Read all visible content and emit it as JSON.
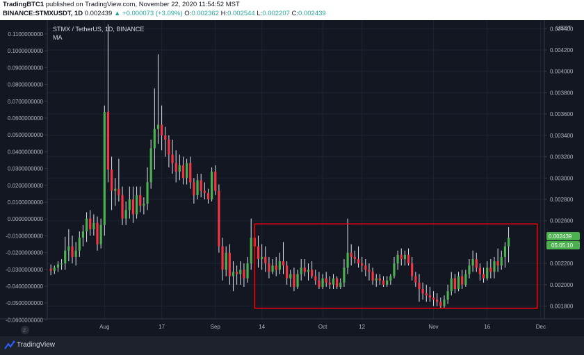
{
  "header": {
    "author": "TradingBTC1",
    "published_text": " published on TradingView.com, November 22, 2020 11:54:52 MST",
    "symbol": "BINANCE:STMXUSDT, 1D",
    "last_price": "0.002439",
    "change": "+0.000073 (+3.09%)",
    "o_label": "O:",
    "o_value": "0.002362",
    "h_label": "H:",
    "h_value": "0.002544",
    "l_label": "L:",
    "l_value": "0.002207",
    "c_label": "C:",
    "c_value": "0.002439",
    "up_arrow": "▲"
  },
  "legend": {
    "title": "STMX / TetherUS, 1D, BINANCE",
    "indicator": "MA"
  },
  "price_badge": {
    "price": "0.002439",
    "countdown": "05:05:10"
  },
  "footer": {
    "brand": "TradingView",
    "scale_mark": "Z"
  },
  "colors": {
    "background": "#131722",
    "up_candle": "#4caf50",
    "down_candle": "#f23645",
    "box": "#ff0000",
    "grid": "#1e2433",
    "axis_text": "#b2b5be"
  },
  "chart_data": {
    "type": "candlestick",
    "title": "STMX / TetherUS, 1D, BINANCE",
    "left_axis": {
      "ticks": [
        "0.1100000000",
        "0.1000000000",
        "0.0900000000",
        "0.0800000000",
        "0.0700000000",
        "0.0600000000",
        "0.0500000000",
        "0.0400000000",
        "0.0300000000",
        "0.0200000000",
        "0.0100000000",
        "0.0000000000",
        "-0.0100000000",
        "-0.0200000000",
        "-0.0300000000",
        "-0.0400000000",
        "-0.0500000000",
        "-0.0600000000"
      ]
    },
    "right_axis": {
      "unit": "USDT",
      "ticks": [
        "0.004400",
        "0.004200",
        "0.004000",
        "0.003800",
        "0.003600",
        "0.003400",
        "0.003200",
        "0.003000",
        "0.002800",
        "0.002600",
        "0.002200",
        "0.002000",
        "0.001800"
      ],
      "ylim": [
        0.00168,
        0.00448
      ]
    },
    "x_ticks": [
      {
        "label": "Aug",
        "date": "2020-08-01"
      },
      {
        "label": "17",
        "date": "2020-08-17"
      },
      {
        "label": "Sep",
        "date": "2020-09-01"
      },
      {
        "label": "14",
        "date": "2020-09-14"
      },
      {
        "label": "Oct",
        "date": "2020-10-01"
      },
      {
        "label": "12",
        "date": "2020-10-12"
      },
      {
        "label": "Nov",
        "date": "2020-11-01"
      },
      {
        "label": "16",
        "date": "2020-11-16"
      },
      {
        "label": "Dec",
        "date": "2020-12-01"
      }
    ],
    "xlim": [
      "2020-07-16",
      "2020-12-02"
    ],
    "highlight_box": {
      "from": "2020-09-12",
      "to": "2020-11-30",
      "low": 0.00178,
      "high": 0.00257
    },
    "series": [
      {
        "values": [
          [
            "2020-07-17",
            0.00215,
            0.00219,
            0.00209,
            0.00213
          ],
          [
            "2020-07-18",
            0.00213,
            0.00218,
            0.0021,
            0.00216
          ],
          [
            "2020-07-19",
            0.00216,
            0.00222,
            0.00212,
            0.00219
          ],
          [
            "2020-07-20",
            0.00219,
            0.00224,
            0.00214,
            0.0022
          ],
          [
            "2020-07-21",
            0.0022,
            0.00245,
            0.00214,
            0.00232
          ],
          [
            "2020-07-22",
            0.00232,
            0.00252,
            0.00222,
            0.00236
          ],
          [
            "2020-07-23",
            0.00236,
            0.00246,
            0.0022,
            0.00226
          ],
          [
            "2020-07-24",
            0.00226,
            0.0024,
            0.00218,
            0.00232
          ],
          [
            "2020-07-25",
            0.00232,
            0.0025,
            0.00226,
            0.00244
          ],
          [
            "2020-07-26",
            0.00244,
            0.00256,
            0.00236,
            0.0025
          ],
          [
            "2020-07-27",
            0.0025,
            0.00268,
            0.0024,
            0.00262
          ],
          [
            "2020-07-28",
            0.00262,
            0.0027,
            0.00246,
            0.00252
          ],
          [
            "2020-07-29",
            0.00252,
            0.00266,
            0.00246,
            0.00258
          ],
          [
            "2020-07-30",
            0.00258,
            0.00264,
            0.00232,
            0.00238
          ],
          [
            "2020-07-31",
            0.00238,
            0.00262,
            0.00234,
            0.00256
          ],
          [
            "2020-08-01",
            0.00256,
            0.00368,
            0.00246,
            0.00362
          ],
          [
            "2020-08-02",
            0.00362,
            0.00444,
            0.00296,
            0.00308
          ],
          [
            "2020-08-03",
            0.00308,
            0.0032,
            0.0027,
            0.00288
          ],
          [
            "2020-08-04",
            0.00288,
            0.003,
            0.00274,
            0.0029
          ],
          [
            "2020-08-05",
            0.0029,
            0.00318,
            0.00278,
            0.00284
          ],
          [
            "2020-08-06",
            0.00284,
            0.00292,
            0.00256,
            0.00262
          ],
          [
            "2020-08-07",
            0.00262,
            0.00278,
            0.00256,
            0.0027
          ],
          [
            "2020-08-08",
            0.0027,
            0.00292,
            0.00262,
            0.0028
          ],
          [
            "2020-08-09",
            0.0028,
            0.00292,
            0.00258,
            0.00266
          ],
          [
            "2020-08-10",
            0.00266,
            0.00292,
            0.00262,
            0.00284
          ],
          [
            "2020-08-11",
            0.00284,
            0.00292,
            0.00268,
            0.00274
          ],
          [
            "2020-08-12",
            0.00274,
            0.00282,
            0.00266,
            0.00276
          ],
          [
            "2020-08-13",
            0.00276,
            0.0031,
            0.0027,
            0.00296
          ],
          [
            "2020-08-14",
            0.00296,
            0.00336,
            0.0029,
            0.00328
          ],
          [
            "2020-08-15",
            0.00328,
            0.00384,
            0.00308,
            0.00346
          ],
          [
            "2020-08-16",
            0.00346,
            0.00416,
            0.00332,
            0.0035
          ],
          [
            "2020-08-17",
            0.0035,
            0.00368,
            0.00326,
            0.0034
          ],
          [
            "2020-08-18",
            0.0034,
            0.00348,
            0.0032,
            0.00336
          ],
          [
            "2020-08-19",
            0.00336,
            0.0034,
            0.0031,
            0.00322
          ],
          [
            "2020-08-20",
            0.00322,
            0.00336,
            0.00304,
            0.00314
          ],
          [
            "2020-08-21",
            0.00314,
            0.00326,
            0.00296,
            0.00306
          ],
          [
            "2020-08-22",
            0.00306,
            0.00322,
            0.00298,
            0.00312
          ],
          [
            "2020-08-23",
            0.00312,
            0.0032,
            0.00294,
            0.003
          ],
          [
            "2020-08-24",
            0.003,
            0.00318,
            0.00294,
            0.00314
          ],
          [
            "2020-08-25",
            0.00314,
            0.0032,
            0.0029,
            0.00296
          ],
          [
            "2020-08-26",
            0.00296,
            0.003,
            0.00276,
            0.00284
          ],
          [
            "2020-08-27",
            0.00284,
            0.00304,
            0.0028,
            0.00298
          ],
          [
            "2020-08-28",
            0.00298,
            0.00304,
            0.00282,
            0.00288
          ],
          [
            "2020-08-29",
            0.00288,
            0.00296,
            0.0028,
            0.00286
          ],
          [
            "2020-08-30",
            0.00286,
            0.0029,
            0.00276,
            0.0028
          ],
          [
            "2020-08-31",
            0.0028,
            0.0031,
            0.00278,
            0.00306
          ],
          [
            "2020-09-01",
            0.00306,
            0.00312,
            0.00284,
            0.00288
          ],
          [
            "2020-09-02",
            0.00288,
            0.00294,
            0.0023,
            0.00236
          ],
          [
            "2020-09-03",
            0.00236,
            0.00244,
            0.00204,
            0.00214
          ],
          [
            "2020-09-04",
            0.00214,
            0.00236,
            0.00208,
            0.0023
          ],
          [
            "2020-09-05",
            0.0023,
            0.00238,
            0.002,
            0.00208
          ],
          [
            "2020-09-06",
            0.00208,
            0.00222,
            0.00194,
            0.00212
          ],
          [
            "2020-09-07",
            0.00212,
            0.00218,
            0.002,
            0.0021
          ],
          [
            "2020-09-08",
            0.0021,
            0.00222,
            0.002,
            0.00214
          ],
          [
            "2020-09-09",
            0.00214,
            0.0022,
            0.00198,
            0.00206
          ],
          [
            "2020-09-10",
            0.00206,
            0.00226,
            0.00202,
            0.0022
          ],
          [
            "2020-09-11",
            0.0022,
            0.00262,
            0.00214,
            0.00244
          ],
          [
            "2020-09-12",
            0.00244,
            0.00256,
            0.0023,
            0.00236
          ],
          [
            "2020-09-13",
            0.00236,
            0.00246,
            0.00216,
            0.00224
          ],
          [
            "2020-09-14",
            0.00224,
            0.00238,
            0.00214,
            0.00226
          ],
          [
            "2020-09-15",
            0.00226,
            0.00236,
            0.00212,
            0.0022
          ],
          [
            "2020-09-16",
            0.0022,
            0.00226,
            0.00206,
            0.00212
          ],
          [
            "2020-09-17",
            0.00212,
            0.00224,
            0.0021,
            0.00218
          ],
          [
            "2020-09-18",
            0.00218,
            0.00226,
            0.00208,
            0.00214
          ],
          [
            "2020-09-19",
            0.00214,
            0.0023,
            0.0021,
            0.00222
          ],
          [
            "2020-09-20",
            0.00222,
            0.0024,
            0.0021,
            0.00218
          ],
          [
            "2020-09-21",
            0.00218,
            0.00222,
            0.002,
            0.00206
          ],
          [
            "2020-09-22",
            0.00206,
            0.00214,
            0.00198,
            0.0021
          ],
          [
            "2020-09-23",
            0.0021,
            0.00216,
            0.00194,
            0.00198
          ],
          [
            "2020-09-24",
            0.00198,
            0.00214,
            0.00196,
            0.0021
          ],
          [
            "2020-09-25",
            0.0021,
            0.00224,
            0.00204,
            0.00216
          ],
          [
            "2020-09-26",
            0.00216,
            0.00224,
            0.00208,
            0.00212
          ],
          [
            "2020-09-27",
            0.00212,
            0.0022,
            0.00204,
            0.00214
          ],
          [
            "2020-09-28",
            0.00214,
            0.00222,
            0.00206,
            0.00208
          ],
          [
            "2020-09-29",
            0.00208,
            0.00214,
            0.002,
            0.00204
          ],
          [
            "2020-09-30",
            0.00204,
            0.00212,
            0.00196,
            0.00198
          ],
          [
            "2020-10-01",
            0.00198,
            0.0021,
            0.00196,
            0.00206
          ],
          [
            "2020-10-02",
            0.00206,
            0.00212,
            0.00198,
            0.00202
          ],
          [
            "2020-10-03",
            0.00202,
            0.00208,
            0.00196,
            0.002
          ],
          [
            "2020-10-04",
            0.002,
            0.0021,
            0.00196,
            0.00206
          ],
          [
            "2020-10-05",
            0.00206,
            0.00208,
            0.00196,
            0.00198
          ],
          [
            "2020-10-06",
            0.00198,
            0.00206,
            0.00196,
            0.00202
          ],
          [
            "2020-10-07",
            0.00202,
            0.00224,
            0.00198,
            0.00216
          ],
          [
            "2020-10-08",
            0.00216,
            0.00262,
            0.0021,
            0.0023
          ],
          [
            "2020-10-09",
            0.0023,
            0.00238,
            0.00218,
            0.00226
          ],
          [
            "2020-10-10",
            0.00226,
            0.00232,
            0.0022,
            0.00224
          ],
          [
            "2020-10-11",
            0.00224,
            0.00236,
            0.00216,
            0.0022
          ],
          [
            "2020-10-12",
            0.0022,
            0.00226,
            0.00212,
            0.00218
          ],
          [
            "2020-10-13",
            0.00218,
            0.00224,
            0.00208,
            0.00214
          ],
          [
            "2020-10-14",
            0.00214,
            0.0022,
            0.00204,
            0.00212
          ],
          [
            "2020-10-15",
            0.00212,
            0.00216,
            0.002,
            0.00204
          ],
          [
            "2020-10-16",
            0.00204,
            0.0021,
            0.00198,
            0.00206
          ],
          [
            "2020-10-17",
            0.00206,
            0.0021,
            0.002,
            0.00204
          ],
          [
            "2020-10-18",
            0.00204,
            0.00208,
            0.00198,
            0.002
          ],
          [
            "2020-10-19",
            0.002,
            0.00208,
            0.00198,
            0.00204
          ],
          [
            "2020-10-20",
            0.00204,
            0.0021,
            0.002,
            0.00208
          ],
          [
            "2020-10-21",
            0.00208,
            0.00226,
            0.00206,
            0.0022
          ],
          [
            "2020-10-22",
            0.0022,
            0.00232,
            0.00214,
            0.00228
          ],
          [
            "2020-10-23",
            0.00228,
            0.00234,
            0.00218,
            0.00224
          ],
          [
            "2020-10-24",
            0.00224,
            0.00232,
            0.00218,
            0.00228
          ],
          [
            "2020-10-25",
            0.00228,
            0.00234,
            0.00218,
            0.0022
          ],
          [
            "2020-10-26",
            0.0022,
            0.00226,
            0.00204,
            0.00208
          ],
          [
            "2020-10-27",
            0.00208,
            0.00212,
            0.00198,
            0.00202
          ],
          [
            "2020-10-28",
            0.00202,
            0.0021,
            0.00184,
            0.00196
          ],
          [
            "2020-10-29",
            0.00196,
            0.00202,
            0.00186,
            0.00192
          ],
          [
            "2020-10-30",
            0.00192,
            0.002,
            0.00184,
            0.0019
          ],
          [
            "2020-10-31",
            0.0019,
            0.00198,
            0.00184,
            0.00188
          ],
          [
            "2020-11-01",
            0.00188,
            0.00194,
            0.0018,
            0.00186
          ],
          [
            "2020-11-02",
            0.00186,
            0.00192,
            0.0018,
            0.00184
          ],
          [
            "2020-11-03",
            0.00184,
            0.00188,
            0.00178,
            0.0018
          ],
          [
            "2020-11-04",
            0.0018,
            0.0019,
            0.00178,
            0.00186
          ],
          [
            "2020-11-05",
            0.00186,
            0.002,
            0.00182,
            0.00194
          ],
          [
            "2020-11-06",
            0.00194,
            0.00212,
            0.0019,
            0.00206
          ],
          [
            "2020-11-07",
            0.00206,
            0.0021,
            0.00192,
            0.00196
          ],
          [
            "2020-11-08",
            0.00196,
            0.00212,
            0.00194,
            0.00208
          ],
          [
            "2020-11-09",
            0.00208,
            0.00214,
            0.00196,
            0.002
          ],
          [
            "2020-11-10",
            0.002,
            0.00214,
            0.00198,
            0.0021
          ],
          [
            "2020-11-11",
            0.0021,
            0.00224,
            0.00206,
            0.00218
          ],
          [
            "2020-11-12",
            0.00218,
            0.00232,
            0.00212,
            0.00224
          ],
          [
            "2020-11-13",
            0.00224,
            0.0023,
            0.00212,
            0.00216
          ],
          [
            "2020-11-14",
            0.00216,
            0.0022,
            0.00204,
            0.0021
          ],
          [
            "2020-11-15",
            0.0021,
            0.00216,
            0.00202,
            0.00206
          ],
          [
            "2020-11-16",
            0.00206,
            0.00222,
            0.00204,
            0.00216
          ],
          [
            "2020-11-17",
            0.00216,
            0.00224,
            0.00206,
            0.00212
          ],
          [
            "2020-11-18",
            0.00212,
            0.00226,
            0.00206,
            0.00222
          ],
          [
            "2020-11-19",
            0.00222,
            0.00234,
            0.00212,
            0.00218
          ],
          [
            "2020-11-20",
            0.00218,
            0.00232,
            0.00214,
            0.00226
          ],
          [
            "2020-11-21",
            0.00226,
            0.0024,
            0.00216,
            0.00236
          ],
          [
            "2020-11-22",
            0.00236,
            0.00254,
            0.00221,
            0.00244
          ]
        ]
      }
    ]
  }
}
